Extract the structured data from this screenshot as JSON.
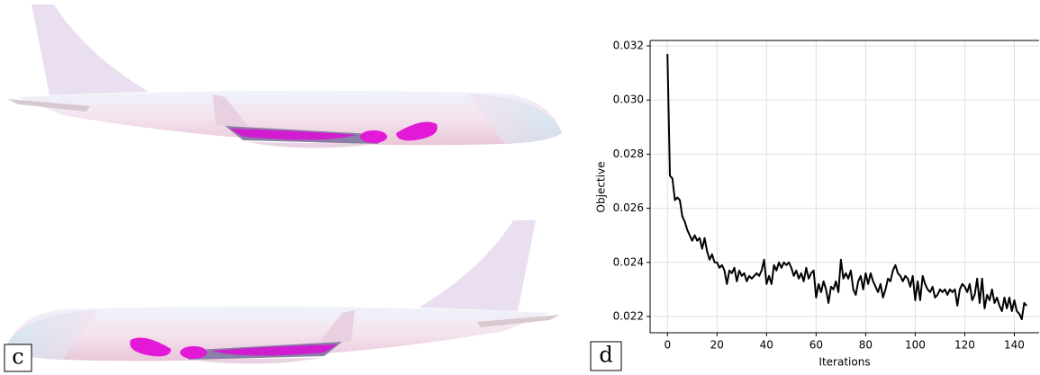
{
  "panel_labels": [
    "c",
    "d"
  ],
  "chart_data": {
    "type": "line",
    "x_label": "Iterations",
    "y_label": "Objective",
    "x": [
      0,
      1,
      2,
      3,
      4,
      5,
      6,
      7,
      8,
      9,
      10,
      11,
      12,
      13,
      14,
      15,
      16,
      17,
      18,
      19,
      20,
      21,
      22,
      23,
      24,
      25,
      26,
      27,
      28,
      29,
      30,
      31,
      32,
      33,
      34,
      35,
      36,
      37,
      38,
      39,
      40,
      41,
      42,
      43,
      44,
      45,
      46,
      47,
      48,
      49,
      50,
      51,
      52,
      53,
      54,
      55,
      56,
      57,
      58,
      59,
      60,
      61,
      62,
      63,
      64,
      65,
      66,
      67,
      68,
      69,
      70,
      71,
      72,
      73,
      74,
      75,
      76,
      77,
      78,
      79,
      80,
      81,
      82,
      83,
      84,
      85,
      86,
      87,
      88,
      89,
      90,
      91,
      92,
      93,
      94,
      95,
      96,
      97,
      98,
      99,
      100,
      101,
      102,
      103,
      104,
      105,
      106,
      107,
      108,
      109,
      110,
      111,
      112,
      113,
      114,
      115,
      116,
      117,
      118,
      119,
      120,
      121,
      122,
      123,
      124,
      125,
      126,
      127,
      128,
      129,
      130,
      131,
      132,
      133,
      134,
      135,
      136,
      137,
      138,
      139,
      140,
      141,
      142,
      143,
      144,
      145
    ],
    "values": [
      0.0317,
      0.0272,
      0.0271,
      0.0263,
      0.0264,
      0.0263,
      0.0257,
      0.0255,
      0.0252,
      0.025,
      0.0248,
      0.025,
      0.0248,
      0.0249,
      0.0245,
      0.0249,
      0.0244,
      0.0241,
      0.0243,
      0.024,
      0.024,
      0.0238,
      0.0239,
      0.0237,
      0.0232,
      0.0237,
      0.0236,
      0.0238,
      0.0233,
      0.0237,
      0.0235,
      0.0236,
      0.0233,
      0.0235,
      0.0234,
      0.0235,
      0.0236,
      0.0235,
      0.0237,
      0.0241,
      0.0232,
      0.0235,
      0.0232,
      0.0239,
      0.0237,
      0.024,
      0.0238,
      0.024,
      0.0239,
      0.024,
      0.0238,
      0.0235,
      0.0237,
      0.0234,
      0.0236,
      0.0233,
      0.0238,
      0.0234,
      0.0236,
      0.0237,
      0.0227,
      0.0232,
      0.0229,
      0.0233,
      0.023,
      0.0225,
      0.0231,
      0.023,
      0.0233,
      0.0229,
      0.0241,
      0.0234,
      0.0236,
      0.0234,
      0.0237,
      0.023,
      0.0228,
      0.0233,
      0.0235,
      0.023,
      0.0236,
      0.0232,
      0.0236,
      0.0233,
      0.0231,
      0.0229,
      0.0232,
      0.0227,
      0.023,
      0.0234,
      0.0233,
      0.0237,
      0.0239,
      0.0236,
      0.0235,
      0.0233,
      0.0235,
      0.0234,
      0.0231,
      0.0235,
      0.0226,
      0.0233,
      0.0226,
      0.0235,
      0.0232,
      0.023,
      0.0229,
      0.0231,
      0.0227,
      0.0228,
      0.023,
      0.0229,
      0.023,
      0.0228,
      0.023,
      0.0229,
      0.023,
      0.0224,
      0.023,
      0.0232,
      0.0231,
      0.0229,
      0.0232,
      0.0226,
      0.0228,
      0.0234,
      0.0225,
      0.0234,
      0.0223,
      0.0228,
      0.0226,
      0.023,
      0.0225,
      0.0227,
      0.0224,
      0.0222,
      0.0227,
      0.0223,
      0.0227,
      0.0222,
      0.0226,
      0.0222,
      0.0221,
      0.0219,
      0.0225,
      0.0224
    ],
    "color": "#000000",
    "xlim": [
      -7,
      150
    ],
    "ylim": [
      0.0214,
      0.0322
    ],
    "xticks": [
      0,
      20,
      40,
      60,
      80,
      100,
      120,
      140
    ],
    "yticks": [
      0.022,
      0.024,
      0.026,
      0.028,
      {
        "value": 0.03,
        "label": "0.030"
      },
      0.032
    ],
    "grid": true
  }
}
